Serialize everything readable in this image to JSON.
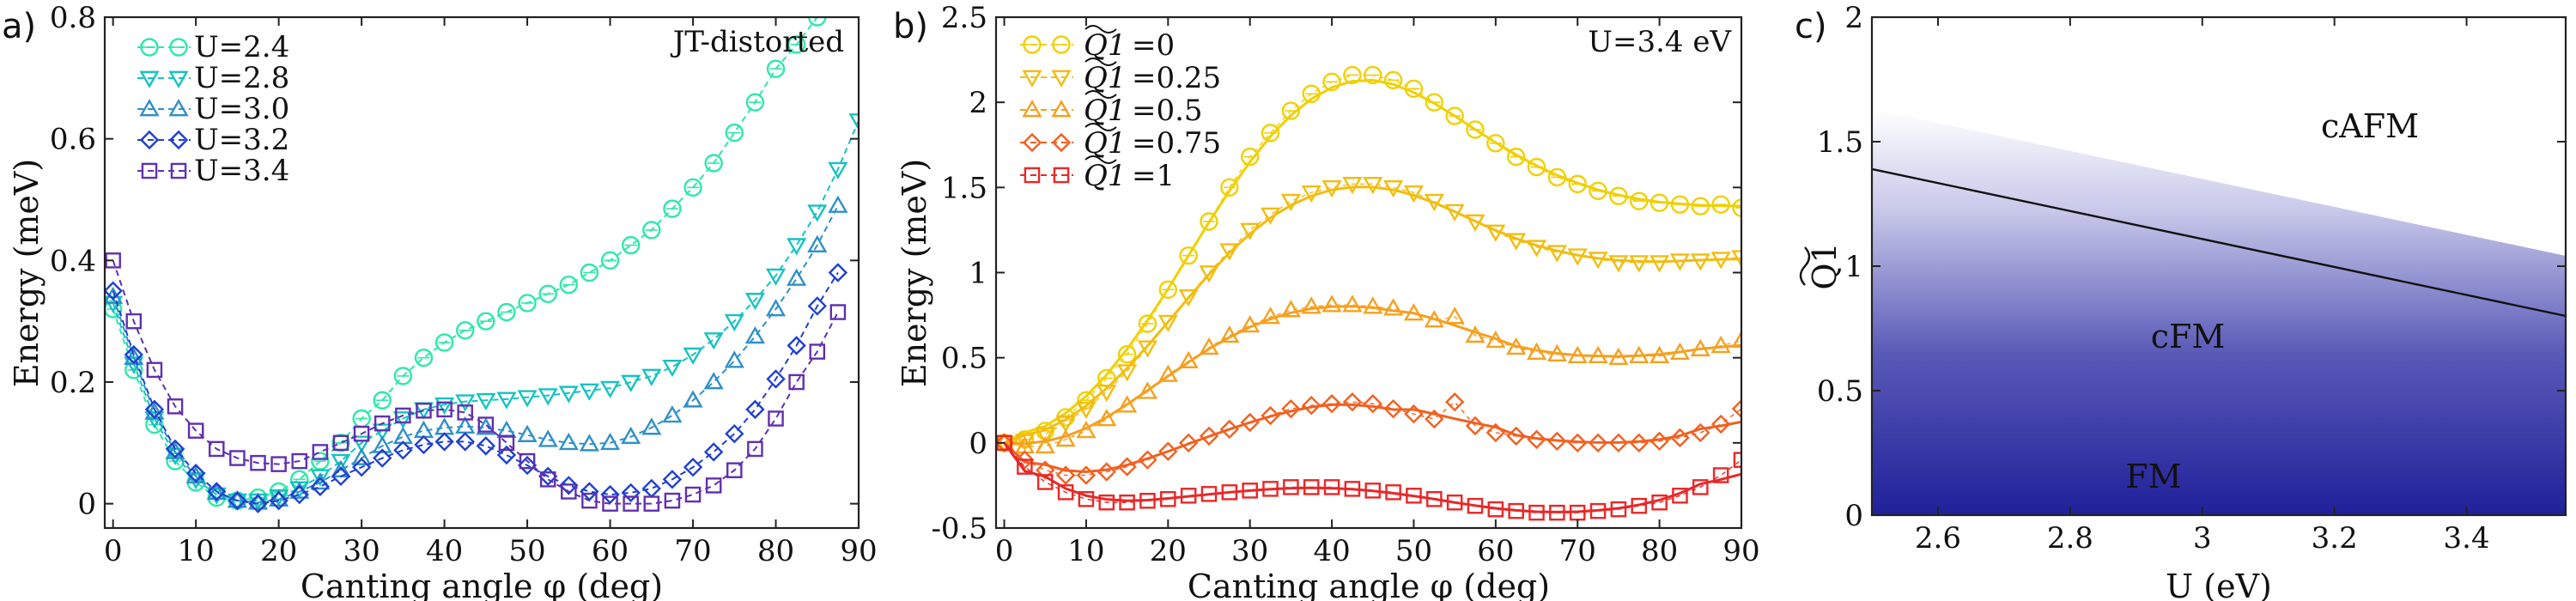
{
  "chart_data": [
    {
      "panel": "a)",
      "type": "line",
      "title": "JT-distorted",
      "xlabel": "Canting angle φ (deg)",
      "ylabel": "Energy (meV)",
      "xlim": [
        -1,
        90
      ],
      "ylim": [
        -0.04,
        0.8
      ],
      "xticks": [
        0,
        10,
        20,
        30,
        40,
        50,
        60,
        70,
        80,
        90
      ],
      "yticks": [
        0,
        0.2,
        0.4,
        0.6,
        0.8
      ],
      "xtick_labels": [
        "0",
        "10",
        "20",
        "30",
        "40",
        "50",
        "60",
        "70",
        "80",
        "90"
      ],
      "ytick_labels": [
        "0",
        "0.2",
        "0.4",
        "0.6",
        "0.8"
      ],
      "legend_position": "top-left",
      "x": [
        0,
        2.5,
        5,
        7.5,
        10,
        12.5,
        15,
        17.5,
        20,
        22.5,
        25,
        27.5,
        30,
        32.5,
        35,
        37.5,
        40,
        42.5,
        45,
        47.5,
        50,
        52.5,
        55,
        57.5,
        60,
        62.5,
        65,
        67.5,
        70,
        72.5,
        75,
        77.5,
        80,
        82.5,
        85,
        87.5,
        90
      ],
      "series": [
        {
          "name": "U=2.4",
          "color": "#2ee8a8",
          "marker": "circle",
          "values": [
            0.32,
            0.22,
            0.13,
            0.07,
            0.035,
            0.01,
            0.005,
            0.01,
            0.02,
            0.04,
            0.07,
            0.1,
            0.14,
            0.17,
            0.21,
            0.24,
            0.265,
            0.285,
            0.3,
            0.315,
            0.33,
            0.345,
            0.36,
            0.38,
            0.4,
            0.425,
            0.45,
            0.485,
            0.52,
            0.56,
            0.61,
            0.66,
            0.715,
            0.755,
            0.8,
            null,
            null
          ]
        },
        {
          "name": "U=2.8",
          "color": "#17c2c2",
          "marker": "triangle-down",
          "values": [
            0.33,
            0.23,
            0.14,
            0.08,
            0.04,
            0.015,
            0.005,
            0.005,
            0.012,
            0.025,
            0.045,
            0.07,
            0.1,
            0.12,
            0.14,
            0.155,
            0.163,
            0.168,
            0.17,
            0.172,
            0.175,
            0.178,
            0.182,
            0.186,
            0.19,
            0.2,
            0.21,
            0.225,
            0.245,
            0.27,
            0.3,
            0.335,
            0.375,
            0.425,
            0.48,
            0.55,
            0.63
          ]
        },
        {
          "name": "U=3.0",
          "color": "#3090c8",
          "marker": "triangle-up",
          "values": [
            0.34,
            0.24,
            0.15,
            0.085,
            0.045,
            0.018,
            0.005,
            0.002,
            0.007,
            0.02,
            0.035,
            0.055,
            0.075,
            0.095,
            0.11,
            0.12,
            0.125,
            0.127,
            0.125,
            0.12,
            0.113,
            0.105,
            0.1,
            0.098,
            0.1,
            0.11,
            0.125,
            0.145,
            0.17,
            0.2,
            0.235,
            0.275,
            0.32,
            0.37,
            0.425,
            0.49,
            null
          ]
        },
        {
          "name": "U=3.2",
          "color": "#2040d0",
          "marker": "diamond",
          "values": [
            0.35,
            0.245,
            0.155,
            0.09,
            0.05,
            0.02,
            0.005,
            0.0,
            0.005,
            0.015,
            0.028,
            0.045,
            0.06,
            0.075,
            0.088,
            0.097,
            0.102,
            0.102,
            0.095,
            0.08,
            0.063,
            0.045,
            0.03,
            0.02,
            0.015,
            0.018,
            0.025,
            0.04,
            0.06,
            0.085,
            0.115,
            0.155,
            0.205,
            0.26,
            0.325,
            0.38,
            null
          ]
        },
        {
          "name": "U=3.4",
          "color": "#6030b0",
          "marker": "square",
          "values": [
            0.4,
            0.3,
            0.22,
            0.16,
            0.12,
            0.09,
            0.075,
            0.067,
            0.065,
            0.07,
            0.085,
            0.1,
            0.115,
            0.132,
            0.145,
            0.153,
            0.155,
            0.15,
            0.13,
            0.1,
            0.07,
            0.04,
            0.02,
            0.005,
            0.0,
            0.0,
            0.0,
            0.005,
            0.015,
            0.03,
            0.055,
            0.09,
            0.14,
            0.2,
            0.25,
            0.315,
            null
          ]
        }
      ]
    },
    {
      "panel": "b)",
      "type": "line",
      "annotation": "U=3.4 eV",
      "xlabel": "Canting angle φ (deg)",
      "ylabel": "Energy (meV)",
      "xlim": [
        -1,
        90
      ],
      "ylim": [
        -0.5,
        2.5
      ],
      "xticks": [
        0,
        10,
        20,
        30,
        40,
        50,
        60,
        70,
        80,
        90
      ],
      "yticks": [
        -0.5,
        0,
        0.5,
        1,
        1.5,
        2,
        2.5
      ],
      "xtick_labels": [
        "0",
        "10",
        "20",
        "30",
        "40",
        "50",
        "60",
        "70",
        "80",
        "90"
      ],
      "ytick_labels": [
        "-0.5",
        "0",
        "0.5",
        "1",
        "1.5",
        "2",
        "2.5"
      ],
      "legend_position": "top-left",
      "x": [
        0,
        2.5,
        5,
        7.5,
        10,
        12.5,
        15,
        17.5,
        20,
        22.5,
        25,
        27.5,
        30,
        32.5,
        35,
        37.5,
        40,
        42.5,
        45,
        47.5,
        50,
        52.5,
        55,
        57.5,
        60,
        62.5,
        65,
        67.5,
        70,
        72.5,
        75,
        77.5,
        80,
        82.5,
        85,
        87.5,
        90
      ],
      "series": [
        {
          "name": "=0",
          "tilde_label": "Q1",
          "color": "#f0d000",
          "marker": "circle",
          "values": [
            0.0,
            0.02,
            0.07,
            0.15,
            0.25,
            0.38,
            0.52,
            0.7,
            0.9,
            1.1,
            1.3,
            1.5,
            1.68,
            1.82,
            1.95,
            2.05,
            2.12,
            2.16,
            2.16,
            2.13,
            2.08,
            2.0,
            1.92,
            1.84,
            1.76,
            1.68,
            1.62,
            1.56,
            1.52,
            1.48,
            1.45,
            1.42,
            1.41,
            1.4,
            1.39,
            1.4,
            1.38
          ]
        },
        {
          "name": "=0.25",
          "tilde_label": "Q1",
          "color": "#f2bd10",
          "marker": "triangle-down",
          "values": [
            0.0,
            0.01,
            0.05,
            0.12,
            0.2,
            0.3,
            0.42,
            0.56,
            0.71,
            0.86,
            1.0,
            1.13,
            1.25,
            1.34,
            1.42,
            1.47,
            1.5,
            1.52,
            1.52,
            1.5,
            1.47,
            1.42,
            1.36,
            1.3,
            1.24,
            1.19,
            1.15,
            1.12,
            1.1,
            1.08,
            1.06,
            1.06,
            1.06,
            1.07,
            1.07,
            1.08,
            1.09
          ]
        },
        {
          "name": "=0.5",
          "tilde_label": "Q1",
          "color": "#f5a020",
          "marker": "triangle-up",
          "values": [
            0.0,
            -0.02,
            -0.02,
            0.02,
            0.07,
            0.14,
            0.22,
            0.3,
            0.4,
            0.48,
            0.56,
            0.63,
            0.69,
            0.74,
            0.78,
            0.8,
            0.81,
            0.81,
            0.8,
            0.79,
            0.76,
            0.72,
            0.74,
            0.63,
            0.6,
            0.56,
            0.53,
            0.52,
            0.51,
            0.51,
            0.5,
            0.51,
            0.51,
            0.53,
            0.55,
            0.57,
            0.6
          ]
        },
        {
          "name": "=0.75",
          "tilde_label": "Q1",
          "color": "#f26020",
          "marker": "diamond",
          "values": [
            0.0,
            -0.1,
            -0.16,
            -0.19,
            -0.19,
            -0.17,
            -0.14,
            -0.1,
            -0.05,
            0.0,
            0.04,
            0.08,
            0.12,
            0.16,
            0.2,
            0.22,
            0.23,
            0.24,
            0.23,
            0.2,
            0.17,
            0.14,
            0.24,
            0.1,
            0.06,
            0.04,
            0.02,
            0.01,
            0.0,
            0.0,
            0.0,
            0.0,
            0.01,
            0.03,
            0.06,
            0.11,
            0.2
          ]
        },
        {
          "name": "=1",
          "tilde_label": "Q1",
          "color": "#e82828",
          "marker": "square",
          "values": [
            0.0,
            -0.14,
            -0.23,
            -0.29,
            -0.33,
            -0.35,
            -0.35,
            -0.34,
            -0.33,
            -0.31,
            -0.3,
            -0.29,
            -0.28,
            -0.27,
            -0.26,
            -0.26,
            -0.26,
            -0.27,
            -0.28,
            -0.29,
            -0.31,
            -0.33,
            -0.35,
            -0.37,
            -0.39,
            -0.4,
            -0.41,
            -0.41,
            -0.41,
            -0.4,
            -0.39,
            -0.37,
            -0.35,
            -0.31,
            -0.26,
            -0.19,
            -0.1
          ]
        }
      ]
    },
    {
      "panel": "c)",
      "type": "heatmap",
      "xlabel": "U (eV)",
      "ylabel": "Q1",
      "xlim": [
        2.5,
        3.55
      ],
      "ylim": [
        0,
        2
      ],
      "xticks": [
        2.6,
        2.8,
        3.0,
        3.2,
        3.4
      ],
      "yticks": [
        0,
        0.5,
        1,
        1.5,
        2
      ],
      "xtick_labels": [
        "2.6",
        "2.8",
        "3",
        "3.2",
        "3.4"
      ],
      "ytick_labels": [
        "0",
        "0.5",
        "1",
        "1.5",
        "2"
      ],
      "regions": [
        "cAFM",
        "cFM",
        "FM"
      ],
      "region_colors": {
        "fill": "#23239a",
        "background": "#ffffff"
      },
      "boundary_line": {
        "U": [
          2.5,
          3.55
        ],
        "Q1": [
          1.39,
          0.8
        ]
      }
    }
  ]
}
